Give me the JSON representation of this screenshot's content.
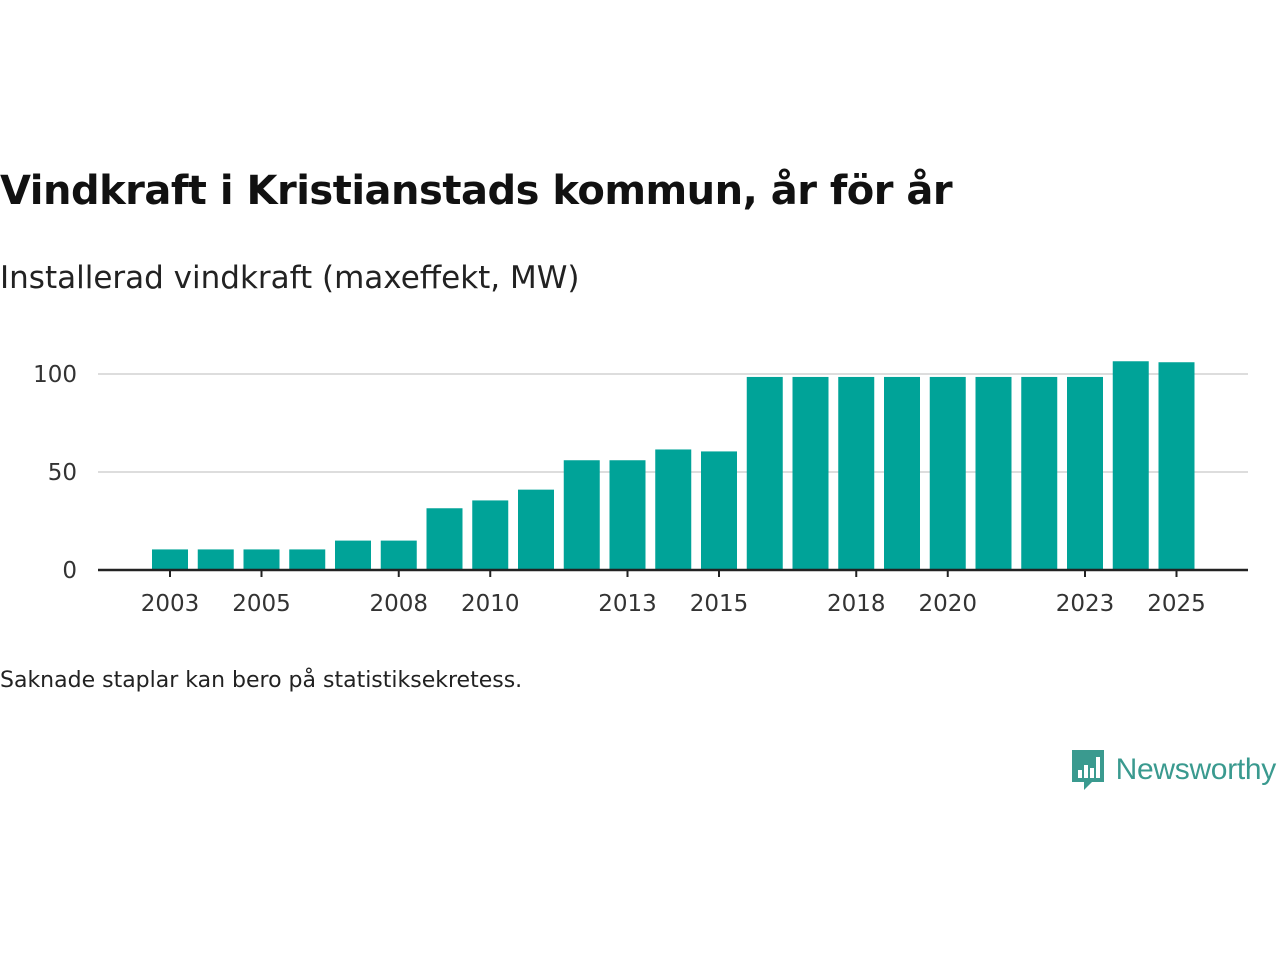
{
  "header": {
    "title": "Vindkraft i Kristianstads kommun, år för år",
    "subtitle": "Installerad vindkraft (maxeffekt, MW)"
  },
  "footer": {
    "note": "Saknade staplar kan bero på statistiksekretess.",
    "brand": "Newsworthy"
  },
  "colors": {
    "bar": "#00a398",
    "grid": "#dddddd",
    "axis": "#222222",
    "brand": "#3a9a8f"
  },
  "chart_data": {
    "type": "bar",
    "title": "Vindkraft i Kristianstads kommun, år för år",
    "ylabel": "Installerad vindkraft (maxeffekt, MW)",
    "xlabel": "",
    "categories": [
      "2003",
      "2004",
      "2005",
      "2006",
      "2007",
      "2008",
      "2009",
      "2010",
      "2011",
      "2012",
      "2013",
      "2014",
      "2015",
      "2016",
      "2017",
      "2018",
      "2019",
      "2020",
      "2021",
      "2022",
      "2023",
      "2024",
      "2025"
    ],
    "values": [
      10.5,
      10.5,
      10.5,
      10.5,
      15,
      15,
      31.5,
      35.5,
      41,
      56,
      56,
      61.5,
      60.5,
      98.5,
      98.5,
      98.5,
      98.5,
      98.5,
      98.5,
      98.5,
      98.5,
      106.5,
      106
    ],
    "xticks": [
      "2003",
      "2005",
      "2008",
      "2010",
      "2013",
      "2015",
      "2018",
      "2020",
      "2023",
      "2025"
    ],
    "yticks": [
      0,
      50,
      100
    ],
    "ylim": [
      0,
      110
    ],
    "grid": true,
    "legend": "none"
  }
}
